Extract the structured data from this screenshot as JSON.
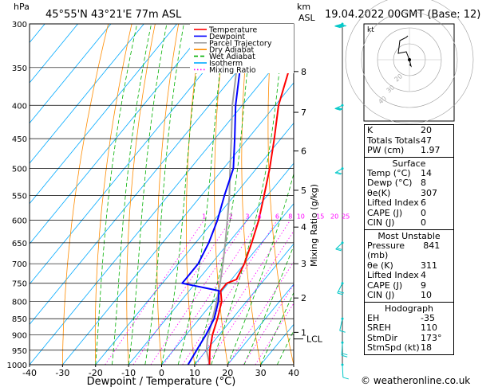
{
  "header": {
    "hpa_label": "hPa",
    "location": "45°55'N  43°21'E  77m  ASL",
    "km_label": "km",
    "asl_label": "ASL",
    "datetime": "19.04.2022  00GMT  (Base: 12)"
  },
  "footer": {
    "credit": "© weatheronline.co.uk"
  },
  "colors": {
    "temperature": "#ff0000",
    "dewpoint": "#0000ff",
    "parcel": "#a0a0a0",
    "dry_adiabat": "#ff8c00",
    "wet_adiabat": "#00b000",
    "isotherm": "#00aaff",
    "mixing_ratio": "#ff00ff",
    "wind": "#00c8c8"
  },
  "chart_data": {
    "type": "line",
    "title": "",
    "xlabel": "Dewpoint / Temperature (°C)",
    "ylabel_right": "Mixing Ratio (g/kg)",
    "x_ticks": [
      -40,
      -30,
      -20,
      -10,
      0,
      10,
      20,
      30,
      40
    ],
    "pressure_levels": [
      300,
      350,
      400,
      450,
      500,
      550,
      600,
      650,
      700,
      750,
      800,
      850,
      900,
      950,
      1000
    ],
    "km_ticks": [
      {
        "label": "8",
        "p": 355
      },
      {
        "label": "7",
        "p": 410
      },
      {
        "label": "6",
        "p": 470
      },
      {
        "label": "5",
        "p": 540
      },
      {
        "label": "4",
        "p": 615
      },
      {
        "label": "3",
        "p": 700
      },
      {
        "label": "2",
        "p": 790
      },
      {
        "label": "1",
        "p": 892
      }
    ],
    "lcl": {
      "label": "LCL",
      "p": 913
    },
    "mixing_ratio_labels": [
      "1",
      "2",
      "3",
      "4",
      "6",
      "8",
      "10",
      "15",
      "20",
      "25"
    ],
    "legend": [
      "Temperature",
      "Dewpoint",
      "Parcel Trajectory",
      "Dry Adiabat",
      "Wet Adiabat",
      "Isotherm",
      "Mixing Ratio"
    ],
    "series": [
      {
        "name": "Temperature",
        "points": [
          [
            1000,
            14.5
          ],
          [
            950,
            11
          ],
          [
            900,
            8
          ],
          [
            850,
            5.5
          ],
          [
            800,
            2.5
          ],
          [
            770,
            -0.5
          ],
          [
            750,
            -0.5
          ],
          [
            740,
            1.5
          ],
          [
            700,
            0
          ],
          [
            650,
            -3
          ],
          [
            600,
            -6.5
          ],
          [
            550,
            -11
          ],
          [
            500,
            -16
          ],
          [
            450,
            -22
          ],
          [
            400,
            -29
          ],
          [
            350,
            -35
          ],
          [
            320,
            -41
          ],
          [
            300,
            -45
          ]
        ]
      },
      {
        "name": "Dewpoint",
        "points": [
          [
            1000,
            8
          ],
          [
            950,
            7
          ],
          [
            900,
            6
          ],
          [
            850,
            4.5
          ],
          [
            800,
            1.5
          ],
          [
            770,
            -1
          ],
          [
            750,
            -14
          ],
          [
            740,
            -14
          ],
          [
            700,
            -14
          ],
          [
            650,
            -16
          ],
          [
            600,
            -19
          ],
          [
            550,
            -23
          ],
          [
            500,
            -27
          ],
          [
            450,
            -34
          ],
          [
            400,
            -42
          ],
          [
            350,
            -50
          ],
          [
            300,
            -56
          ]
        ]
      },
      {
        "name": "Parcel Trajectory",
        "points": [
          [
            1000,
            14.5
          ],
          [
            950,
            10
          ],
          [
            913,
            7.5
          ],
          [
            850,
            4
          ],
          [
            800,
            1
          ],
          [
            750,
            -2.5
          ],
          [
            700,
            -6.5
          ],
          [
            650,
            -11
          ],
          [
            600,
            -16
          ],
          [
            550,
            -21.5
          ],
          [
            500,
            -28
          ],
          [
            450,
            -35
          ],
          [
            400,
            -43
          ],
          [
            350,
            -51
          ],
          [
            300,
            -60
          ]
        ]
      }
    ],
    "wind_barbs": [
      {
        "p": 300,
        "dir": 260,
        "kt": 70
      },
      {
        "p": 400,
        "dir": 255,
        "kt": 25
      },
      {
        "p": 500,
        "dir": 250,
        "kt": 15
      },
      {
        "p": 650,
        "dir": 240,
        "kt": 15
      },
      {
        "p": 750,
        "dir": 220,
        "kt": 20
      },
      {
        "p": 850,
        "dir": 200,
        "kt": 10
      },
      {
        "p": 925,
        "dir": 185,
        "kt": 15
      },
      {
        "p": 1000,
        "dir": 175,
        "kt": 10
      }
    ]
  },
  "hodograph": {
    "unit_label": "kt",
    "ring_labels": [
      "20",
      "30",
      "40"
    ],
    "path": [
      [
        0,
        -3
      ],
      [
        1,
        -4
      ],
      [
        0,
        0
      ],
      [
        -2,
        5
      ],
      [
        -7,
        4
      ],
      [
        -6,
        12
      ],
      [
        -2,
        14
      ],
      [
        -1,
        15
      ]
    ]
  },
  "indices": [
    {
      "label": "K",
      "value": "20"
    },
    {
      "label": "Totals Totals",
      "value": "47"
    },
    {
      "label": "PW (cm)",
      "value": "1.97"
    }
  ],
  "surface": {
    "title": "Surface",
    "rows": [
      {
        "label": "Temp (°C)",
        "value": "14"
      },
      {
        "label": "Dewp (°C)",
        "value": "8"
      },
      {
        "label": "θe(K)",
        "value": "307"
      },
      {
        "label": "Lifted Index",
        "value": "6"
      },
      {
        "label": "CAPE (J)",
        "value": "0"
      },
      {
        "label": "CIN (J)",
        "value": "0"
      }
    ]
  },
  "most_unstable": {
    "title": "Most Unstable",
    "rows": [
      {
        "label": "Pressure (mb)",
        "value": "841"
      },
      {
        "label": "θe (K)",
        "value": "311"
      },
      {
        "label": "Lifted Index",
        "value": "4"
      },
      {
        "label": "CAPE (J)",
        "value": "9"
      },
      {
        "label": "CIN (J)",
        "value": "10"
      }
    ]
  },
  "hodo_table": {
    "title": "Hodograph",
    "rows": [
      {
        "label": "EH",
        "value": "-35"
      },
      {
        "label": "SREH",
        "value": "110"
      },
      {
        "label": "StmDir",
        "value": "173°"
      },
      {
        "label": "StmSpd (kt)",
        "value": "18"
      }
    ]
  }
}
